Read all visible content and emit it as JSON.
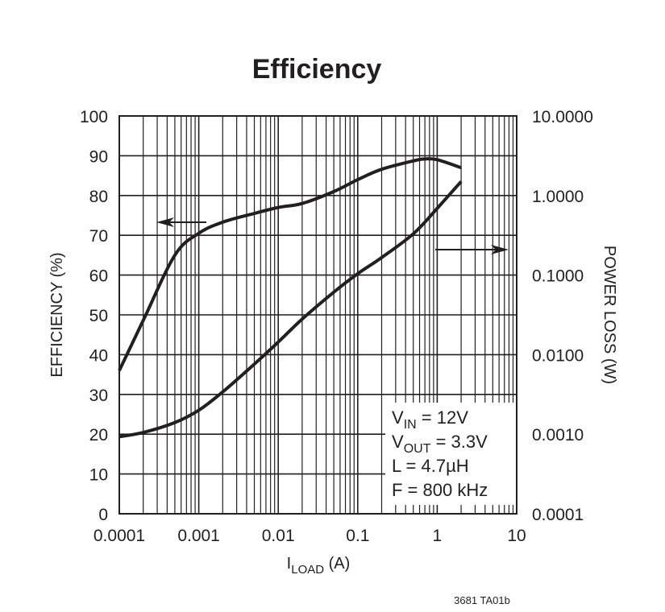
{
  "chart_data": {
    "type": "line",
    "title": "Efficiency",
    "x_axis": {
      "label": {
        "main": "I",
        "sub": "LOAD",
        "rest": " (A)"
      },
      "scale": "log",
      "range": [
        0.0001,
        10
      ],
      "tick_labels": [
        "0.0001",
        "0.001",
        "0.01",
        "0.1",
        "1",
        "10"
      ]
    },
    "y_axis_left": {
      "label": "EFFICIENCY (%)",
      "range": [
        0,
        100
      ],
      "tick_labels": [
        "0",
        "10",
        "20",
        "30",
        "40",
        "50",
        "60",
        "70",
        "80",
        "90",
        "100"
      ]
    },
    "y_axis_right": {
      "label": "POWER LOSS (W)",
      "scale": "log",
      "range": [
        0.0001,
        10
      ],
      "tick_labels": [
        "0.0001",
        "0.0010",
        "0.0100",
        "0.1000",
        "1.0000",
        "10.0000"
      ]
    },
    "grid": true,
    "series": [
      {
        "axis": "left",
        "x": [
          0.0001,
          0.0002,
          0.0005,
          0.001,
          0.002,
          0.005,
          0.01,
          0.02,
          0.05,
          0.1,
          0.2,
          0.5,
          0.7,
          1,
          2
        ],
        "y": [
          36,
          48.6,
          65,
          70.5,
          73.3,
          75.5,
          77,
          78,
          81,
          84,
          86.6,
          88.7,
          89.2,
          89,
          87
        ]
      },
      {
        "axis": "right",
        "x": [
          0.0001,
          0.0002,
          0.0005,
          0.001,
          0.002,
          0.005,
          0.01,
          0.02,
          0.05,
          0.1,
          0.2,
          0.5,
          1,
          2
        ],
        "y": [
          0.00093,
          0.00105,
          0.0014,
          0.002,
          0.0034,
          0.0076,
          0.0144,
          0.028,
          0.061,
          0.104,
          0.166,
          0.33,
          0.69,
          1.5
        ]
      }
    ],
    "annotations": [
      {
        "main": "V",
        "sub": "IN",
        "rest": " = 12V"
      },
      {
        "main": "V",
        "sub": "OUT",
        "rest": " = 3.3V"
      },
      {
        "main": "L = 4.7µH",
        "sub": "",
        "rest": ""
      },
      {
        "main": "F = 800 kHz",
        "sub": "",
        "rest": ""
      }
    ],
    "line_color": "#231f20"
  },
  "footer": "3681 TA01b"
}
